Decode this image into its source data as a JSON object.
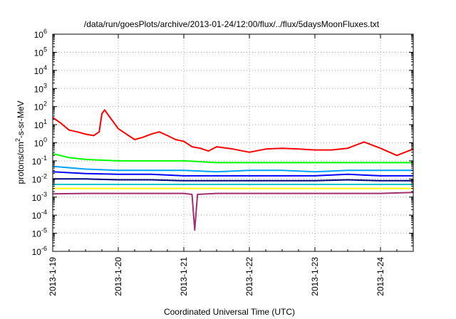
{
  "chart_data": {
    "type": "line",
    "title": "/data/run/goesPlots/archive/2013-01-24/12:00/flux/../flux/5daysMoonFluxes.txt",
    "xlabel": "Coordinated Universal Time (UTC)",
    "ylabel": "protons/cm2-s-sr-MeV",
    "yscale": "log",
    "ylim": [
      1e-06,
      1000000.0
    ],
    "xlim": [
      "2013-1-19",
      "2013-1-24 12:00"
    ],
    "grid": true,
    "legend": "none",
    "x_ticks": [
      "2013-1-19",
      "2013-1-20",
      "2013-1-21",
      "2013-1-22",
      "2013-1-23",
      "2013-1-24"
    ],
    "y_ticks": [
      {
        "base": "10",
        "exp": "-6",
        "value": 1e-06
      },
      {
        "base": "10",
        "exp": "-5",
        "value": 1e-05
      },
      {
        "base": "10",
        "exp": "-4",
        "value": 0.0001
      },
      {
        "base": "10",
        "exp": "-3",
        "value": 0.001
      },
      {
        "base": "10",
        "exp": "-2",
        "value": 0.01
      },
      {
        "base": "10",
        "exp": "-1",
        "value": 0.1
      },
      {
        "base": "10",
        "exp": "0",
        "value": 1
      },
      {
        "base": "10",
        "exp": "1",
        "value": 10
      },
      {
        "base": "10",
        "exp": "2",
        "value": 100
      },
      {
        "base": "10",
        "exp": "3",
        "value": 1000
      },
      {
        "base": "10",
        "exp": "4",
        "value": 10000
      },
      {
        "base": "10",
        "exp": "5",
        "value": 100000
      },
      {
        "base": "10",
        "exp": "6",
        "value": 1000000
      }
    ],
    "series": [
      {
        "color": "#ff0000",
        "x": [
          "2013-1-19 00:00",
          "2013-1-19 03:00",
          "2013-1-19 06:00",
          "2013-1-19 09:00",
          "2013-1-19 12:00",
          "2013-1-19 15:00",
          "2013-1-19 17:00",
          "2013-1-19 18:00",
          "2013-1-19 19:00",
          "2013-1-19 21:00",
          "2013-1-20 00:00",
          "2013-1-20 03:00",
          "2013-1-20 06:00",
          "2013-1-20 09:00",
          "2013-1-20 12:00",
          "2013-1-20 15:00",
          "2013-1-20 18:00",
          "2013-1-20 21:00",
          "2013-1-21 00:00",
          "2013-1-21 03:00",
          "2013-1-21 06:00",
          "2013-1-21 09:00",
          "2013-1-21 12:00",
          "2013-1-21 18:00",
          "2013-1-22 00:00",
          "2013-1-22 06:00",
          "2013-1-22 12:00",
          "2013-1-22 18:00",
          "2013-1-23 00:00",
          "2013-1-23 06:00",
          "2013-1-23 12:00",
          "2013-1-23 18:00",
          "2013-1-24 00:00",
          "2013-1-24 06:00",
          "2013-1-24 12:00"
        ],
        "y": [
          25,
          12,
          5,
          4,
          3,
          2.5,
          4,
          40,
          65,
          25,
          6,
          3,
          1.5,
          2,
          3,
          4,
          2.5,
          1.5,
          1.2,
          0.6,
          0.5,
          0.35,
          0.6,
          0.45,
          0.3,
          0.45,
          0.5,
          0.45,
          0.4,
          0.4,
          0.5,
          1.1,
          0.5,
          0.2,
          0.45
        ]
      },
      {
        "color": "#00ff00",
        "x": [
          "2013-1-19 00:00",
          "2013-1-19 06:00",
          "2013-1-19 12:00",
          "2013-1-20 00:00",
          "2013-1-20 12:00",
          "2013-1-21 00:00",
          "2013-1-21 12:00",
          "2013-1-22 00:00",
          "2013-1-22 12:00",
          "2013-1-23 00:00",
          "2013-1-23 12:00",
          "2013-1-24 00:00",
          "2013-1-24 12:00"
        ],
        "y": [
          0.25,
          0.15,
          0.12,
          0.1,
          0.1,
          0.1,
          0.08,
          0.08,
          0.08,
          0.08,
          0.08,
          0.08,
          0.08
        ]
      },
      {
        "color": "#00a0ff",
        "x": [
          "2013-1-19 00:00",
          "2013-1-19 12:00",
          "2013-1-20 00:00",
          "2013-1-20 12:00",
          "2013-1-21 00:00",
          "2013-1-21 12:00",
          "2013-1-22 00:00",
          "2013-1-22 12:00",
          "2013-1-23 00:00",
          "2013-1-23 12:00",
          "2013-1-24 00:00",
          "2013-1-24 12:00"
        ],
        "y": [
          0.05,
          0.035,
          0.03,
          0.03,
          0.03,
          0.025,
          0.03,
          0.03,
          0.025,
          0.03,
          0.03,
          0.03
        ]
      },
      {
        "color": "#0000ff",
        "x": [
          "2013-1-19 00:00",
          "2013-1-19 12:00",
          "2013-1-20 00:00",
          "2013-1-20 12:00",
          "2013-1-21 00:00",
          "2013-1-21 12:00",
          "2013-1-22 00:00",
          "2013-1-22 12:00",
          "2013-1-23 00:00",
          "2013-1-23 12:00",
          "2013-1-24 00:00",
          "2013-1-24 12:00"
        ],
        "y": [
          0.025,
          0.02,
          0.018,
          0.018,
          0.015,
          0.015,
          0.015,
          0.015,
          0.015,
          0.018,
          0.015,
          0.015
        ]
      },
      {
        "color": "#000080",
        "x": [
          "2013-1-19 00:00",
          "2013-1-19 12:00",
          "2013-1-20 00:00",
          "2013-1-20 12:00",
          "2013-1-21 00:00",
          "2013-1-21 12:00",
          "2013-1-22 00:00",
          "2013-1-22 12:00",
          "2013-1-23 00:00",
          "2013-1-23 12:00",
          "2013-1-24 00:00",
          "2013-1-24 12:00"
        ],
        "y": [
          0.01,
          0.01,
          0.009,
          0.009,
          0.008,
          0.008,
          0.008,
          0.008,
          0.008,
          0.009,
          0.008,
          0.008
        ]
      },
      {
        "color": "#00c8c8",
        "x": [
          "2013-1-19 00:00",
          "2013-1-19 12:00",
          "2013-1-20 00:00",
          "2013-1-20 12:00",
          "2013-1-21 00:00",
          "2013-1-21 12:00",
          "2013-1-22 00:00",
          "2013-1-22 12:00",
          "2013-1-23 00:00",
          "2013-1-23 12:00",
          "2013-1-24 00:00",
          "2013-1-24 12:00"
        ],
        "y": [
          0.005,
          0.005,
          0.005,
          0.005,
          0.005,
          0.005,
          0.005,
          0.005,
          0.005,
          0.005,
          0.005,
          0.005
        ]
      },
      {
        "color": "#ffff00",
        "x": [
          "2013-1-19 00:00",
          "2013-1-19 12:00",
          "2013-1-20 00:00",
          "2013-1-20 12:00",
          "2013-1-21 00:00",
          "2013-1-21 12:00",
          "2013-1-22 00:00",
          "2013-1-22 12:00",
          "2013-1-23 00:00",
          "2013-1-23 12:00",
          "2013-1-24 00:00",
          "2013-1-24 12:00"
        ],
        "y": [
          0.003,
          0.003,
          0.003,
          0.003,
          0.003,
          0.003,
          0.003,
          0.003,
          0.003,
          0.003,
          0.003,
          0.003
        ]
      },
      {
        "color": "#a03070",
        "x": [
          "2013-1-19 00:00",
          "2013-1-19 12:00",
          "2013-1-20 00:00",
          "2013-1-20 12:00",
          "2013-1-21 00:00",
          "2013-1-21 03:00",
          "2013-1-21 04:00",
          "2013-1-21 05:00",
          "2013-1-21 12:00",
          "2013-1-22 00:00",
          "2013-1-22 12:00",
          "2013-1-23 00:00",
          "2013-1-23 12:00",
          "2013-1-24 00:00",
          "2013-1-24 12:00"
        ],
        "y": [
          0.0015,
          0.0016,
          0.0016,
          0.0016,
          0.0016,
          0.0014,
          1.5e-05,
          0.0014,
          0.0016,
          0.0016,
          0.0016,
          0.0016,
          0.0016,
          0.0016,
          0.0018
        ]
      }
    ]
  }
}
